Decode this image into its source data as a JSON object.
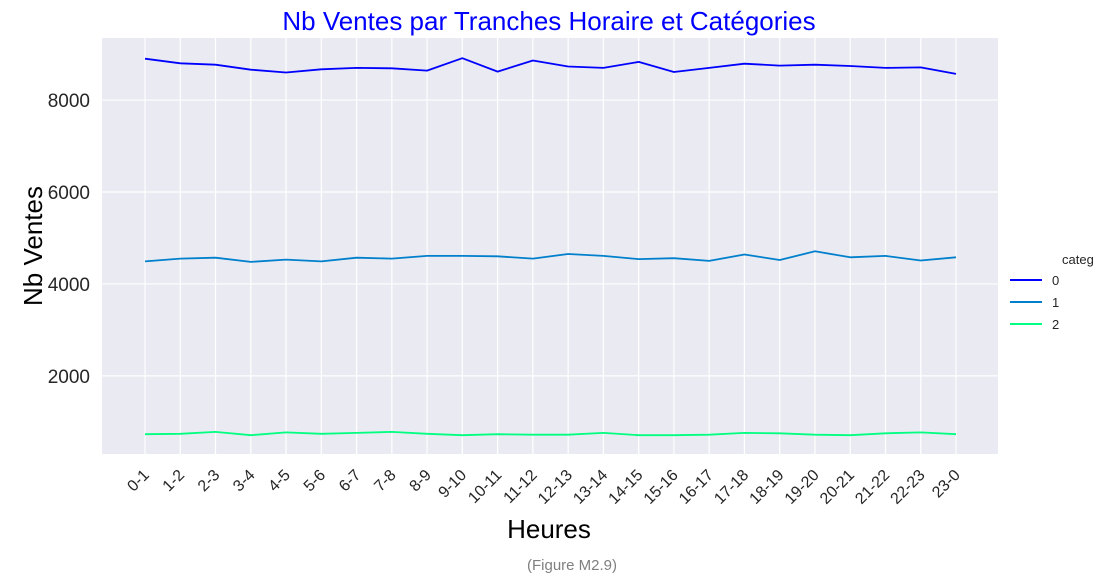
{
  "chart_data": {
    "type": "line",
    "title": "Nb Ventes par Tranches Horaire et Catégories",
    "xlabel": "Heures",
    "ylabel": "Nb Ventes",
    "caption": "(Figure M2.9)",
    "categories": [
      "0-1",
      "1-2",
      "2-3",
      "3-4",
      "4-5",
      "5-6",
      "6-7",
      "7-8",
      "8-9",
      "9-10",
      "10-11",
      "11-12",
      "12-13",
      "13-14",
      "14-15",
      "15-16",
      "16-17",
      "17-18",
      "18-19",
      "19-20",
      "20-21",
      "21-22",
      "22-23",
      "23-0"
    ],
    "y_ticks": [
      2000,
      4000,
      6000,
      8000
    ],
    "ylim": [
      300,
      9350
    ],
    "grid": true,
    "legend": {
      "title": "categ",
      "placement": "right"
    },
    "series": [
      {
        "name": "0",
        "color": "#0000ff",
        "values": [
          8900,
          8800,
          8770,
          8660,
          8600,
          8670,
          8700,
          8690,
          8640,
          8910,
          8620,
          8860,
          8730,
          8700,
          8830,
          8610,
          8700,
          8790,
          8750,
          8770,
          8740,
          8700,
          8710,
          8570
        ]
      },
      {
        "name": "1",
        "color": "#0080cc",
        "values": [
          4490,
          4550,
          4570,
          4480,
          4530,
          4490,
          4570,
          4550,
          4610,
          4610,
          4600,
          4550,
          4650,
          4610,
          4540,
          4560,
          4500,
          4640,
          4520,
          4710,
          4580,
          4610,
          4510,
          4580
        ]
      },
      {
        "name": "2",
        "color": "#00ff80",
        "values": [
          730,
          740,
          780,
          710,
          770,
          740,
          760,
          780,
          740,
          710,
          730,
          720,
          720,
          760,
          710,
          710,
          720,
          760,
          750,
          720,
          710,
          750,
          770,
          730
        ]
      }
    ]
  }
}
